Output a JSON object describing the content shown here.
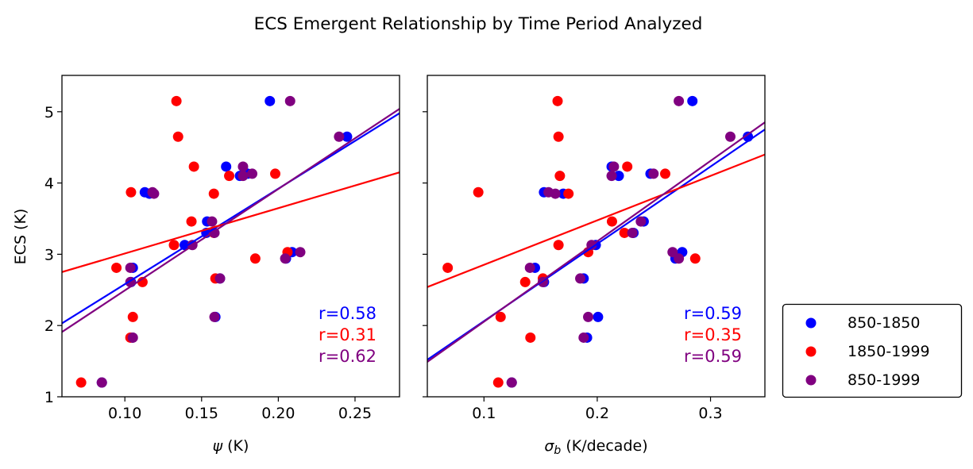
{
  "title": "ECS Emergent Relationship by Time Period Analyzed",
  "colors": {
    "850-1850": "#0000ff",
    "1850-1999": "#ff0000",
    "850-1999": "#800080"
  },
  "legend": {
    "placement": "outside-right-bottom",
    "entries": [
      "850-1850",
      "1850-1999",
      "850-1999"
    ]
  },
  "chart_data": [
    {
      "type": "scatter",
      "xlabel_symbol": "ψ",
      "xlabel_unit": "(K)",
      "ylabel": "ECS (K)",
      "xlim": [
        0.059,
        0.279
      ],
      "ylim": [
        1.0,
        5.51
      ],
      "xticks": [
        0.1,
        0.15,
        0.2,
        0.25
      ],
      "xtick_labels": [
        "0.10",
        "0.15",
        "0.20",
        "0.25"
      ],
      "yticks": [
        1,
        2,
        3,
        4,
        5
      ],
      "ytick_labels": [
        "1",
        "2",
        "3",
        "4",
        "5"
      ],
      "grid": false,
      "y": [
        5.15,
        4.65,
        4.23,
        4.13,
        4.1,
        3.87,
        3.85,
        3.46,
        3.3,
        3.13,
        3.03,
        2.94,
        2.81,
        2.66,
        2.61,
        2.12,
        1.83,
        1.2
      ],
      "series": [
        {
          "name": "850-1850",
          "x": [
            0.1945,
            0.2448,
            0.166,
            0.18,
            0.175,
            0.113,
            0.116,
            0.1536,
            0.1531,
            0.139,
            0.209,
            0.205,
            0.1052,
            0.162,
            0.104,
            0.159,
            0.105,
            0.085
          ],
          "fit": {
            "slope": 13.4,
            "intercept": 1.24
          },
          "r_label": "r=0.58"
        },
        {
          "name": "1850-1999",
          "x": [
            0.1336,
            0.1347,
            0.145,
            0.198,
            0.168,
            0.104,
            0.158,
            0.1434,
            0.158,
            0.132,
            0.206,
            0.185,
            0.0945,
            0.159,
            0.1115,
            0.1052,
            0.1036,
            0.0715
          ],
          "fit": {
            "slope": 6.36,
            "intercept": 2.375
          },
          "r_label": "r=0.31"
        },
        {
          "name": "850-1999",
          "x": [
            0.2077,
            0.2396,
            0.177,
            0.183,
            0.177,
            0.118,
            0.119,
            0.1568,
            0.1584,
            0.144,
            0.2143,
            0.2045,
            0.1036,
            0.162,
            0.1036,
            0.1584,
            0.1052,
            0.085
          ],
          "fit": {
            "slope": 14.23,
            "intercept": 1.07
          },
          "r_label": "r=0.62"
        }
      ]
    },
    {
      "type": "scatter",
      "xlabel_symbol": "σ_b",
      "xlabel_sym_main": "σ",
      "xlabel_sym_sub": "b",
      "xlabel_unit": "(K/decade)",
      "ylabel": "",
      "xlim": [
        0.05,
        0.348
      ],
      "ylim": [
        1.0,
        5.51
      ],
      "xticks": [
        0.1,
        0.2,
        0.3
      ],
      "xtick_labels": [
        "0.1",
        "0.2",
        "0.3"
      ],
      "yticks": [
        1,
        2,
        3,
        4,
        5
      ],
      "ytick_labels": [],
      "grid": false,
      "y": [
        5.15,
        4.65,
        4.23,
        4.13,
        4.1,
        3.87,
        3.85,
        3.46,
        3.3,
        3.13,
        3.03,
        2.94,
        2.81,
        2.66,
        2.61,
        2.12,
        1.83,
        1.2
      ],
      "series": [
        {
          "name": "850-1850",
          "x": [
            0.284,
            0.333,
            0.2127,
            0.247,
            0.219,
            0.153,
            0.17,
            0.241,
            0.232,
            0.1987,
            0.275,
            0.269,
            0.145,
            0.188,
            0.153,
            0.2007,
            0.191,
            0.1245
          ],
          "fit": {
            "slope": 10.84,
            "intercept": 0.978
          },
          "r_label": "r=0.59"
        },
        {
          "name": "1850-1999",
          "x": [
            0.165,
            0.1658,
            0.2265,
            0.26,
            0.167,
            0.095,
            0.1746,
            0.213,
            0.224,
            0.1658,
            0.192,
            0.2865,
            0.068,
            0.152,
            0.1364,
            0.1147,
            0.141,
            0.1126
          ],
          "fit": {
            "slope": 6.24,
            "intercept": 2.228
          },
          "r_label": "r=0.35"
        },
        {
          "name": "850-1999",
          "x": [
            0.272,
            0.3175,
            0.2147,
            0.2497,
            0.2127,
            0.157,
            0.163,
            0.2385,
            0.231,
            0.195,
            0.2665,
            0.272,
            0.1406,
            0.185,
            0.152,
            0.192,
            0.188,
            0.1245
          ],
          "fit": {
            "slope": 11.28,
            "intercept": 0.926
          },
          "r_label": "r=0.59"
        }
      ]
    }
  ]
}
